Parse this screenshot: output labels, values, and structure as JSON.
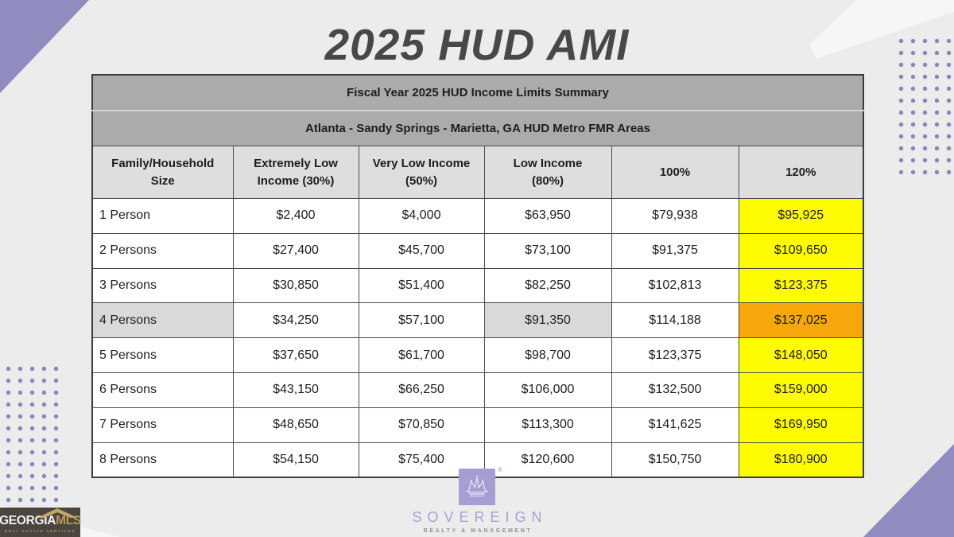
{
  "page": {
    "title": "2025 HUD AMI"
  },
  "colors": {
    "accent_purple": "#918CC0",
    "dot_purple": "#8C87BB",
    "band_gray": "#ABABAB",
    "column_header_gray": "#DEDEDE",
    "row_shade_gray": "#D9D9D9",
    "highlight_yellow": "#FFFB00",
    "highlight_orange": "#F7A70A"
  },
  "table": {
    "header1": "Fiscal Year 2025 HUD Income Limits Summary",
    "header2": "Atlanta - Sandy Springs - Marietta, GA HUD Metro FMR Areas",
    "columns": [
      "Family/Household\nSize",
      "Extremely Low\nIncome (30%)",
      "Very Low Income\n(50%)",
      "Low Income\n(80%)",
      "100%",
      "120%"
    ],
    "rows": [
      {
        "cells": [
          "1 Person",
          "$2,400",
          "$4,000",
          "$63,950",
          "$79,938",
          "$95,925"
        ],
        "shaded": false
      },
      {
        "cells": [
          "2 Persons",
          "$27,400",
          "$45,700",
          "$73,100",
          "$91,375",
          "$109,650"
        ],
        "shaded": false
      },
      {
        "cells": [
          "3 Persons",
          "$30,850",
          "$51,400",
          "$82,250",
          "$102,813",
          "$123,375"
        ],
        "shaded": false
      },
      {
        "cells": [
          "4 Persons",
          "$34,250",
          "$57,100",
          "$91,350",
          "$114,188",
          "$137,025"
        ],
        "shaded": true
      },
      {
        "cells": [
          "5 Persons",
          "$37,650",
          "$61,700",
          "$98,700",
          "$123,375",
          "$148,050"
        ],
        "shaded": false
      },
      {
        "cells": [
          "6 Persons",
          "$43,150",
          "$66,250",
          "$106,000",
          "$132,500",
          "$159,000"
        ],
        "shaded": false
      },
      {
        "cells": [
          "7 Persons",
          "$48,650",
          "$70,850",
          "$113,300",
          "$141,625",
          "$169,950"
        ],
        "shaded": false
      },
      {
        "cells": [
          "8 Persons",
          "$54,150",
          "$75,400",
          "$120,600",
          "$150,750",
          "$180,900"
        ],
        "shaded": false
      }
    ],
    "shaded_gray_column_indexes": [
      0,
      3
    ],
    "highlight_column_index": 5
  },
  "logos": {
    "sovereign": {
      "name": "SOVEREIGN",
      "tagline": "REALTY & MANAGEMENT",
      "registered_mark": "®"
    },
    "georgia_mls": {
      "word_white": "GEORGIA",
      "word_gold": "MLS",
      "subtext": "REAL ESTATE SERVICES"
    }
  }
}
